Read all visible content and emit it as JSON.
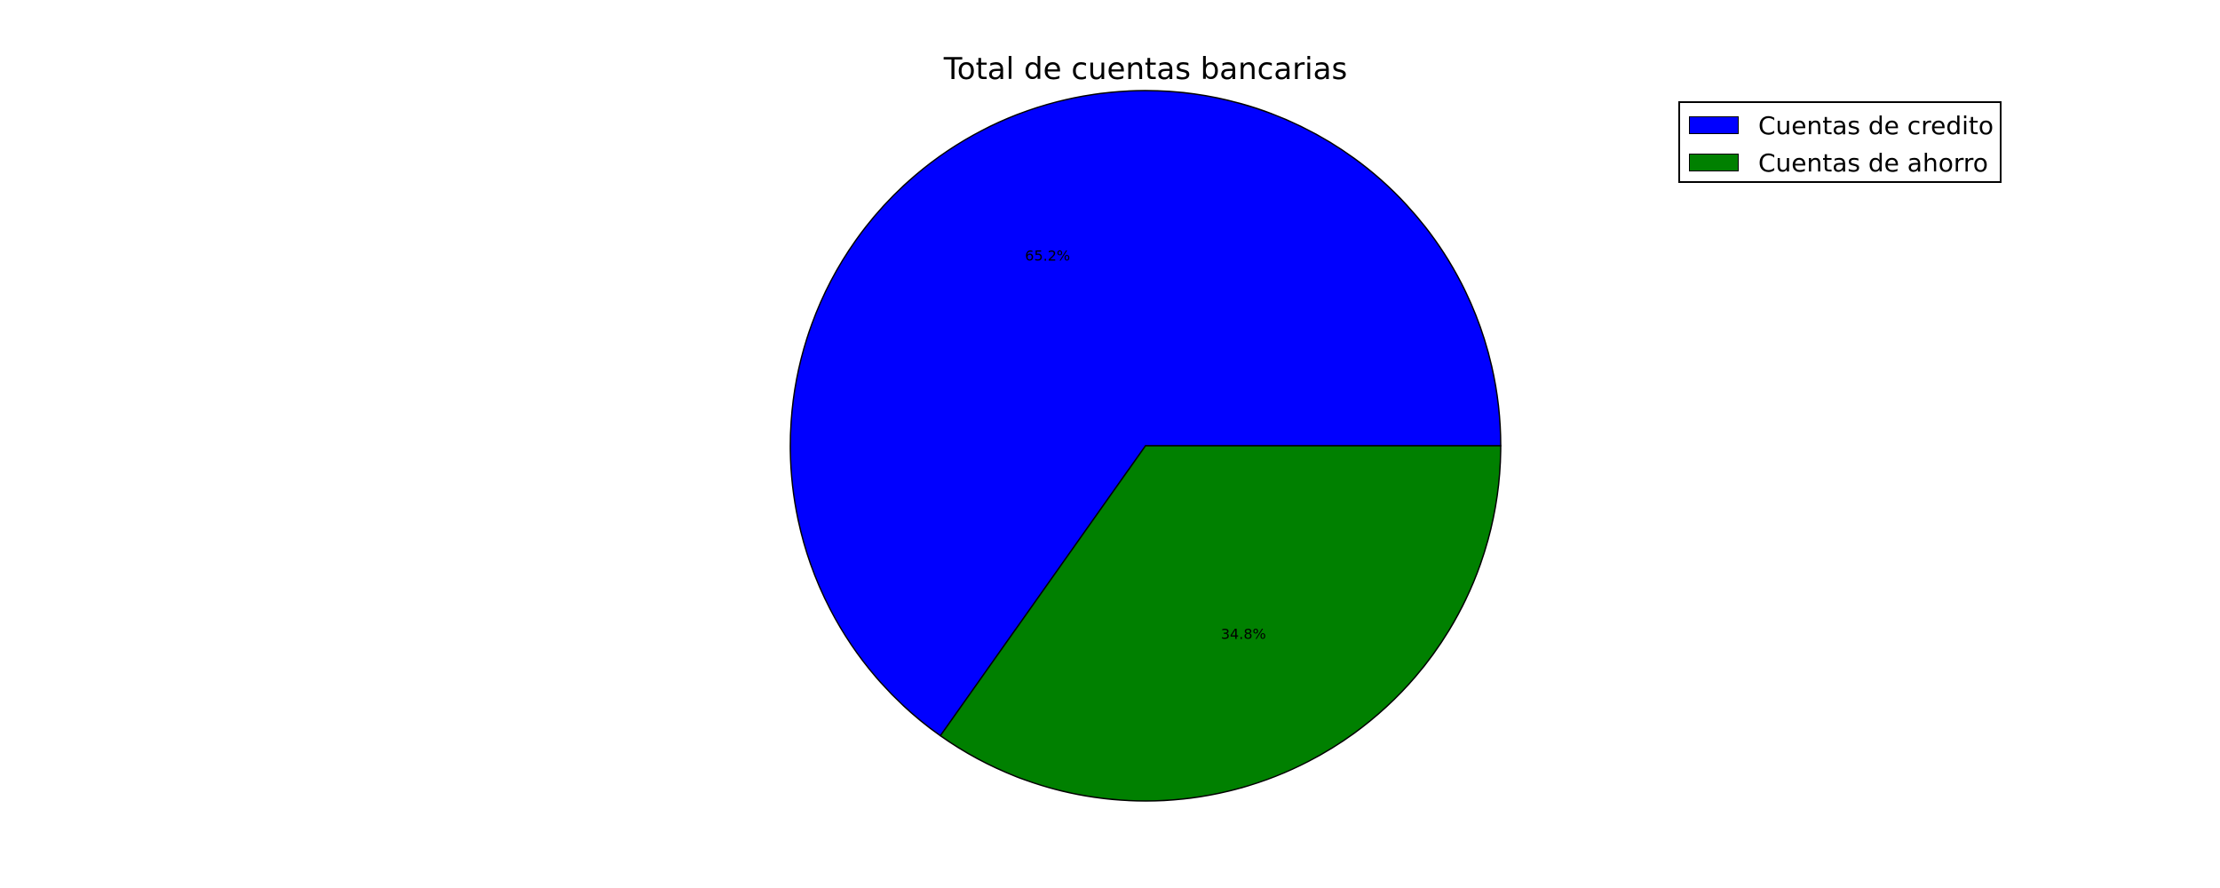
{
  "chart_data": {
    "type": "pie",
    "title": "Total de cuentas bancarias",
    "labels": [
      "Cuentas de credito",
      "Cuentas de ahorro"
    ],
    "values": [
      65.2,
      34.8
    ],
    "value_labels": [
      "65.2%",
      "34.8%"
    ],
    "colors": [
      "#0000ff",
      "#008000"
    ],
    "start_angle": 0,
    "direction": "counterclockwise",
    "legend_position": "upper-right"
  }
}
